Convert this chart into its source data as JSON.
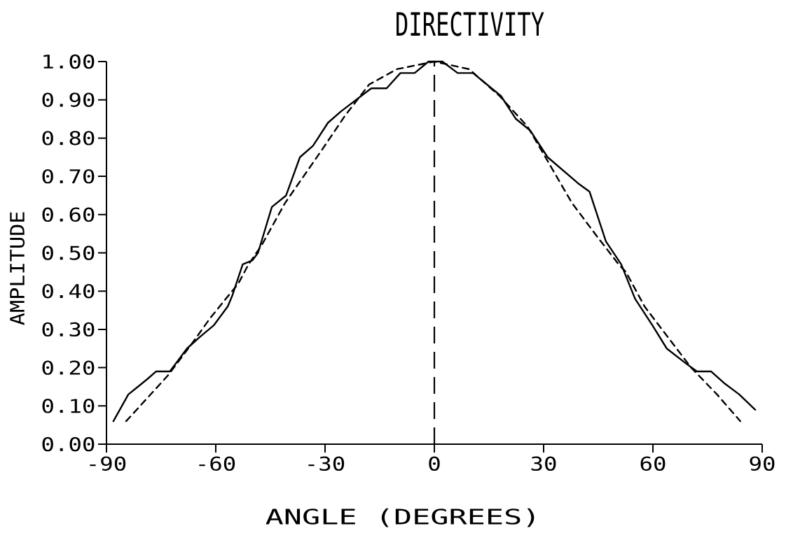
{
  "chart_data": {
    "type": "line",
    "title": "DIRECTIVITY",
    "xlabel": "ANGLE (DEGREES)",
    "ylabel": "AMPLITUDE",
    "xlim": [
      -90,
      90
    ],
    "ylim": [
      0,
      1
    ],
    "xticks": [
      -90,
      -60,
      -30,
      0,
      30,
      60,
      90
    ],
    "yticks": [
      {
        "value": 0,
        "label": "0.00"
      },
      {
        "value": 0.1,
        "label": "0.10"
      },
      {
        "value": 0.2,
        "label": "0.20"
      },
      {
        "value": 0.3,
        "label": "0.30"
      },
      {
        "value": 0.4,
        "label": "0.40"
      },
      {
        "value": 0.5,
        "label": "0.50"
      },
      {
        "value": 0.6,
        "label": "0.60"
      },
      {
        "value": 0.7,
        "label": "0.70"
      },
      {
        "value": 0.8,
        "label": "0.80"
      },
      {
        "value": 0.9,
        "label": "0.90"
      },
      {
        "value": 1,
        "label": "1.00"
      }
    ],
    "series": [
      {
        "color": "#000000",
        "line_style": "solid",
        "x": [
          -88.1,
          -84.0,
          -81.4,
          -78.8,
          -76.4,
          -72.6,
          -67.9,
          -64.4,
          -60.6,
          -56.7,
          -55.4,
          -52.6,
          -50.0,
          -48.4,
          -44.6,
          -40.7,
          -36.9,
          -33.3,
          -29.2,
          -25.6,
          -17.3,
          -13.1,
          -9.3,
          -5.4,
          -1.6,
          2.2,
          6.4,
          10.6,
          18.3,
          22.4,
          26.3,
          31.1,
          39.7,
          42.6,
          47.1,
          51.3,
          55.1,
          59.9,
          63.8,
          69.2,
          72.1,
          76.0,
          79.5,
          83.7,
          88.1
        ],
        "values": [
          0.06,
          0.13,
          0.15,
          0.17,
          0.19,
          0.19,
          0.25,
          0.28,
          0.31,
          0.36,
          0.39,
          0.47,
          0.48,
          0.5,
          0.62,
          0.65,
          0.75,
          0.78,
          0.84,
          0.87,
          0.93,
          0.93,
          0.97,
          0.97,
          1.0,
          1.0,
          0.97,
          0.97,
          0.91,
          0.85,
          0.82,
          0.75,
          0.68,
          0.66,
          0.53,
          0.47,
          0.38,
          0.31,
          0.25,
          0.21,
          0.19,
          0.19,
          0.16,
          0.13,
          0.09
        ]
      },
      {
        "color": "#000000",
        "line_style": "dashed",
        "x": [
          -84.6,
          -73.1,
          -66.0,
          -61.5,
          -53.8,
          -51.0,
          -47.4,
          -41.0,
          -35.9,
          -30.8,
          -24.4,
          -17.9,
          -10.3,
          0,
          9.6,
          17.9,
          25.6,
          31.1,
          37.8,
          44.9,
          50.6,
          52.6,
          57.7,
          64.1,
          70.5,
          77.6,
          84.0
        ],
        "values": [
          0.06,
          0.18,
          0.27,
          0.33,
          0.42,
          0.47,
          0.52,
          0.63,
          0.7,
          0.77,
          0.86,
          0.94,
          0.98,
          1.0,
          0.98,
          0.91,
          0.83,
          0.74,
          0.63,
          0.54,
          0.47,
          0.45,
          0.36,
          0.28,
          0.2,
          0.13,
          0.06
        ]
      }
    ],
    "ref_lines": [
      {
        "axis": "x",
        "value": 0,
        "line_style": "dashed",
        "color": "#000000"
      }
    ]
  }
}
